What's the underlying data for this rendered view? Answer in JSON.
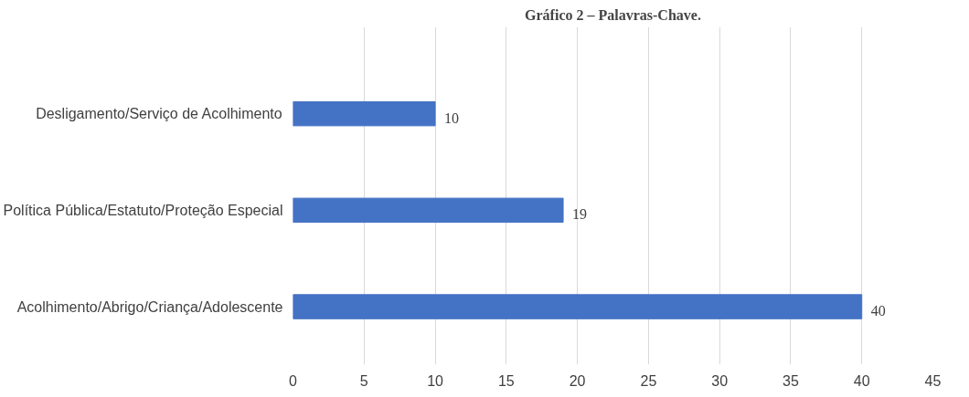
{
  "chart_data": {
    "type": "bar",
    "orientation": "horizontal",
    "title": "Gráfico 2 – Palavras-Chave.",
    "categories": [
      "Desligamento/Serviço de Acolhimento",
      "Política Pública/Estatuto/Proteção Especial",
      "Acolhimento/Abrigo/Criança/Adolescente"
    ],
    "values": [
      10,
      19,
      40
    ],
    "color": "#4472c4",
    "xlim": [
      0,
      45
    ],
    "xticks": [
      0,
      5,
      10,
      15,
      20,
      25,
      30,
      35,
      40,
      45
    ],
    "grid": "x",
    "data_labels": true
  }
}
